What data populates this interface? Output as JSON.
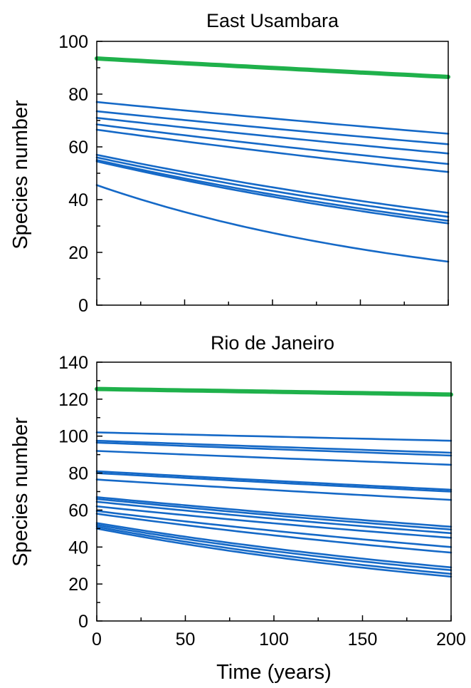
{
  "chart_data": [
    {
      "type": "line",
      "title": "East Usambara",
      "xlabel": "",
      "ylabel": "Species number",
      "xlim": [
        0,
        200
      ],
      "ylim": [
        0,
        100
      ],
      "yticks": [
        0,
        20,
        40,
        60,
        80,
        100
      ],
      "xticks": [],
      "grid": false,
      "colors": {
        "highlight": "#1fb14b",
        "series": "#1569c7"
      },
      "series": [
        {
          "values": [
            93.5,
            86.5
          ],
          "highlight": true
        },
        {
          "values": [
            77,
            65
          ]
        },
        {
          "values": [
            73.5,
            61
          ]
        },
        {
          "values": [
            71,
            57.5
          ]
        },
        {
          "values": [
            68.5,
            53.5
          ]
        },
        {
          "values": [
            66.5,
            50.5
          ]
        },
        {
          "values": [
            57,
            35
          ]
        },
        {
          "values": [
            56,
            33.5
          ]
        },
        {
          "values": [
            55,
            32
          ]
        },
        {
          "values": [
            54.5,
            31
          ]
        },
        {
          "values": [
            45.5,
            16.5
          ]
        }
      ]
    },
    {
      "type": "line",
      "title": "Rio de Janeiro",
      "xlabel": "Time (years)",
      "ylabel": "Species number",
      "xlim": [
        0,
        200
      ],
      "ylim": [
        0,
        140
      ],
      "yticks": [
        0,
        20,
        40,
        60,
        80,
        100,
        120,
        140
      ],
      "xticks": [
        0,
        50,
        100,
        150,
        200
      ],
      "grid": false,
      "colors": {
        "highlight": "#1fb14b",
        "series": "#1569c7"
      },
      "series": [
        {
          "values": [
            125.5,
            122.5
          ],
          "highlight": true
        },
        {
          "values": [
            102,
            97.5
          ]
        },
        {
          "values": [
            97.5,
            91
          ]
        },
        {
          "values": [
            96.5,
            89.5
          ]
        },
        {
          "values": [
            92,
            84.5
          ]
        },
        {
          "values": [
            81,
            71
          ]
        },
        {
          "values": [
            80,
            70
          ]
        },
        {
          "values": [
            76.5,
            65.5
          ]
        },
        {
          "values": [
            67,
            51
          ]
        },
        {
          "values": [
            66,
            49.5
          ]
        },
        {
          "values": [
            64.5,
            47.5
          ]
        },
        {
          "values": [
            62,
            45
          ]
        },
        {
          "values": [
            59.5,
            40
          ]
        },
        {
          "values": [
            58,
            37
          ]
        },
        {
          "values": [
            53,
            29
          ]
        },
        {
          "values": [
            52,
            27.5
          ]
        },
        {
          "values": [
            51,
            25.5
          ]
        },
        {
          "values": [
            50,
            24
          ]
        }
      ]
    }
  ]
}
